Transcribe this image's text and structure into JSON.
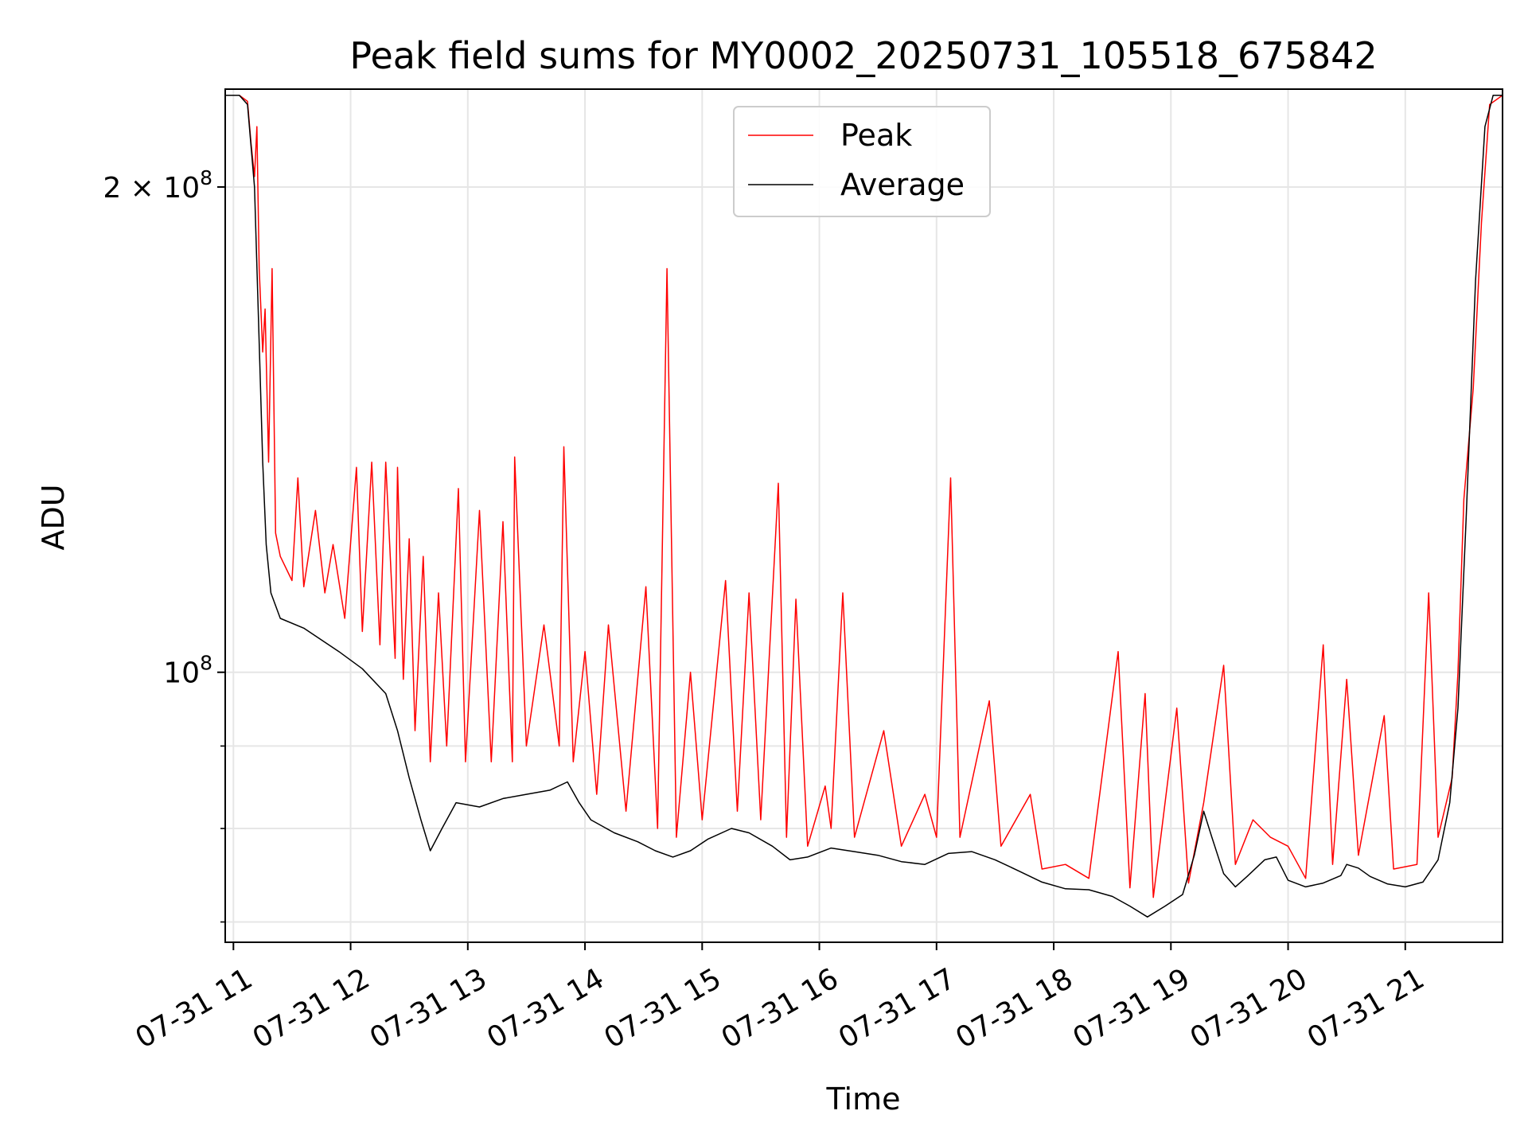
{
  "chart_data": {
    "type": "line",
    "title": "Peak field sums for MY0002_20250731_105518_675842",
    "xlabel": "Time",
    "ylabel": "ADU",
    "yscale": "log",
    "ylim": [
      68000000,
      230000000
    ],
    "xlim_hours": [
      10.93,
      21.83
    ],
    "grid": true,
    "legend_position": "top-center",
    "x_ticks": [
      {
        "hour": 11,
        "label": "07-31 11"
      },
      {
        "hour": 12,
        "label": "07-31 12"
      },
      {
        "hour": 13,
        "label": "07-31 13"
      },
      {
        "hour": 14,
        "label": "07-31 14"
      },
      {
        "hour": 15,
        "label": "07-31 15"
      },
      {
        "hour": 16,
        "label": "07-31 16"
      },
      {
        "hour": 17,
        "label": "07-31 17"
      },
      {
        "hour": 18,
        "label": "07-31 18"
      },
      {
        "hour": 19,
        "label": "07-31 19"
      },
      {
        "hour": 20,
        "label": "07-31 20"
      },
      {
        "hour": 21,
        "label": "07-31 21"
      }
    ],
    "y_ticks": [
      {
        "value": 100000000,
        "base": "10",
        "exp": "8"
      },
      {
        "value": 200000000,
        "base": "2 × 10",
        "exp": "8"
      }
    ],
    "y_minor_ticks": [
      70000000,
      80000000,
      90000000,
      300000000
    ],
    "series": [
      {
        "name": "Average",
        "color": "#000000",
        "points": [
          [
            10.93,
            228000000
          ],
          [
            11.05,
            228000000
          ],
          [
            11.12,
            225000000
          ],
          [
            11.18,
            200000000
          ],
          [
            11.22,
            160000000
          ],
          [
            11.25,
            135000000
          ],
          [
            11.28,
            120000000
          ],
          [
            11.32,
            112000000
          ],
          [
            11.4,
            108000000
          ],
          [
            11.6,
            106500000
          ],
          [
            11.9,
            103000000
          ],
          [
            12.1,
            100500000
          ],
          [
            12.3,
            97000000
          ],
          [
            12.4,
            92000000
          ],
          [
            12.5,
            86000000
          ],
          [
            12.6,
            81000000
          ],
          [
            12.68,
            77500000
          ],
          [
            12.78,
            80000000
          ],
          [
            12.9,
            83000000
          ],
          [
            13.1,
            82500000
          ],
          [
            13.3,
            83500000
          ],
          [
            13.5,
            84000000
          ],
          [
            13.7,
            84500000
          ],
          [
            13.85,
            85500000
          ],
          [
            13.95,
            83000000
          ],
          [
            14.05,
            81000000
          ],
          [
            14.25,
            79500000
          ],
          [
            14.45,
            78500000
          ],
          [
            14.6,
            77500000
          ],
          [
            14.75,
            76800000
          ],
          [
            14.9,
            77500000
          ],
          [
            15.05,
            78800000
          ],
          [
            15.25,
            80000000
          ],
          [
            15.4,
            79500000
          ],
          [
            15.6,
            78000000
          ],
          [
            15.75,
            76500000
          ],
          [
            15.9,
            76800000
          ],
          [
            16.1,
            77800000
          ],
          [
            16.3,
            77400000
          ],
          [
            16.5,
            77000000
          ],
          [
            16.7,
            76300000
          ],
          [
            16.9,
            76000000
          ],
          [
            17.1,
            77200000
          ],
          [
            17.3,
            77400000
          ],
          [
            17.5,
            76500000
          ],
          [
            17.7,
            75300000
          ],
          [
            17.9,
            74100000
          ],
          [
            18.1,
            73400000
          ],
          [
            18.3,
            73300000
          ],
          [
            18.5,
            72600000
          ],
          [
            18.65,
            71600000
          ],
          [
            18.8,
            70500000
          ],
          [
            18.95,
            71600000
          ],
          [
            19.1,
            72800000
          ],
          [
            19.2,
            77000000
          ],
          [
            19.28,
            82000000
          ],
          [
            19.35,
            79000000
          ],
          [
            19.45,
            75000000
          ],
          [
            19.55,
            73600000
          ],
          [
            19.65,
            74700000
          ],
          [
            19.8,
            76500000
          ],
          [
            19.9,
            76800000
          ],
          [
            20.0,
            74300000
          ],
          [
            20.15,
            73600000
          ],
          [
            20.3,
            74000000
          ],
          [
            20.45,
            74800000
          ],
          [
            20.5,
            76000000
          ],
          [
            20.6,
            75600000
          ],
          [
            20.7,
            74700000
          ],
          [
            20.85,
            73900000
          ],
          [
            21.0,
            73600000
          ],
          [
            21.15,
            74100000
          ],
          [
            21.28,
            76500000
          ],
          [
            21.38,
            83000000
          ],
          [
            21.45,
            95000000
          ],
          [
            21.52,
            125000000
          ],
          [
            21.6,
            175000000
          ],
          [
            21.68,
            218000000
          ],
          [
            21.75,
            228000000
          ],
          [
            21.83,
            228000000
          ]
        ]
      },
      {
        "name": "Peak",
        "color": "#ff0000",
        "points": [
          [
            10.93,
            228000000
          ],
          [
            11.05,
            228000000
          ],
          [
            11.12,
            226000000
          ],
          [
            11.15,
            213000000
          ],
          [
            11.18,
            203000000
          ],
          [
            11.2,
            218000000
          ],
          [
            11.22,
            178000000
          ],
          [
            11.25,
            158000000
          ],
          [
            11.27,
            168000000
          ],
          [
            11.3,
            135000000
          ],
          [
            11.33,
            178000000
          ],
          [
            11.36,
            122000000
          ],
          [
            11.4,
            118000000
          ],
          [
            11.5,
            114000000
          ],
          [
            11.55,
            132000000
          ],
          [
            11.6,
            113000000
          ],
          [
            11.7,
            126000000
          ],
          [
            11.78,
            112000000
          ],
          [
            11.85,
            120000000
          ],
          [
            11.95,
            108000000
          ],
          [
            12.05,
            134000000
          ],
          [
            12.1,
            106000000
          ],
          [
            12.18,
            135000000
          ],
          [
            12.25,
            104000000
          ],
          [
            12.3,
            135000000
          ],
          [
            12.38,
            102000000
          ],
          [
            12.4,
            134000000
          ],
          [
            12.45,
            99000000
          ],
          [
            12.5,
            121000000
          ],
          [
            12.55,
            92000000
          ],
          [
            12.62,
            118000000
          ],
          [
            12.68,
            88000000
          ],
          [
            12.75,
            112000000
          ],
          [
            12.82,
            90000000
          ],
          [
            12.92,
            130000000
          ],
          [
            12.98,
            88000000
          ],
          [
            13.1,
            126000000
          ],
          [
            13.2,
            88000000
          ],
          [
            13.3,
            124000000
          ],
          [
            13.38,
            88000000
          ],
          [
            13.4,
            136000000
          ],
          [
            13.5,
            90000000
          ],
          [
            13.65,
            107000000
          ],
          [
            13.78,
            90000000
          ],
          [
            13.82,
            138000000
          ],
          [
            13.9,
            88000000
          ],
          [
            14.0,
            103000000
          ],
          [
            14.1,
            84000000
          ],
          [
            14.2,
            107000000
          ],
          [
            14.35,
            82000000
          ],
          [
            14.52,
            113000000
          ],
          [
            14.62,
            80000000
          ],
          [
            14.7,
            178000000
          ],
          [
            14.78,
            79000000
          ],
          [
            14.9,
            100000000
          ],
          [
            15.0,
            81000000
          ],
          [
            15.2,
            114000000
          ],
          [
            15.3,
            82000000
          ],
          [
            15.4,
            112000000
          ],
          [
            15.5,
            81000000
          ],
          [
            15.65,
            131000000
          ],
          [
            15.72,
            79000000
          ],
          [
            15.8,
            111000000
          ],
          [
            15.9,
            78000000
          ],
          [
            16.05,
            85000000
          ],
          [
            16.1,
            80000000
          ],
          [
            16.2,
            112000000
          ],
          [
            16.3,
            79000000
          ],
          [
            16.55,
            92000000
          ],
          [
            16.7,
            78000000
          ],
          [
            16.9,
            84000000
          ],
          [
            17.0,
            79000000
          ],
          [
            17.12,
            132000000
          ],
          [
            17.2,
            79000000
          ],
          [
            17.45,
            96000000
          ],
          [
            17.55,
            78000000
          ],
          [
            17.8,
            84000000
          ],
          [
            17.9,
            75500000
          ],
          [
            18.1,
            76000000
          ],
          [
            18.3,
            74500000
          ],
          [
            18.55,
            103000000
          ],
          [
            18.65,
            73500000
          ],
          [
            18.78,
            97000000
          ],
          [
            18.85,
            72500000
          ],
          [
            19.05,
            95000000
          ],
          [
            19.15,
            74000000
          ],
          [
            19.28,
            83000000
          ],
          [
            19.45,
            101000000
          ],
          [
            19.55,
            76000000
          ],
          [
            19.7,
            81000000
          ],
          [
            19.85,
            79000000
          ],
          [
            20.0,
            78000000
          ],
          [
            20.15,
            74500000
          ],
          [
            20.3,
            104000000
          ],
          [
            20.38,
            76000000
          ],
          [
            20.5,
            99000000
          ],
          [
            20.6,
            77000000
          ],
          [
            20.82,
            94000000
          ],
          [
            20.9,
            75500000
          ],
          [
            21.1,
            76000000
          ],
          [
            21.2,
            112000000
          ],
          [
            21.28,
            79000000
          ],
          [
            21.4,
            86000000
          ],
          [
            21.45,
            100000000
          ],
          [
            21.5,
            128000000
          ],
          [
            21.58,
            150000000
          ],
          [
            21.65,
            190000000
          ],
          [
            21.72,
            225000000
          ],
          [
            21.83,
            228000000
          ]
        ]
      }
    ]
  }
}
